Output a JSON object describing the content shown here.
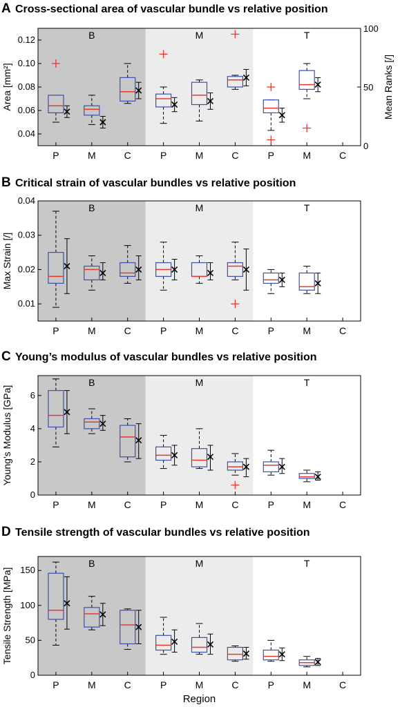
{
  "x_axis_label": "Region",
  "categories": [
    "P",
    "M",
    "C",
    "P",
    "M",
    "C",
    "P",
    "M",
    "C"
  ],
  "regions": [
    {
      "label": "B",
      "shade": "#c8c8c8"
    },
    {
      "label": "M",
      "shade": "#ececec"
    },
    {
      "label": "T",
      "shade": "#ffffff"
    }
  ],
  "colors": {
    "box": "#3a4fb0",
    "median": "#e8392e",
    "outlier": "#e8392e",
    "whisker": "#000000"
  },
  "chart_data": [
    {
      "type": "box",
      "letter": "A",
      "title": "Cross-sectional area of vascular bundle vs relative position",
      "ylabel": "Area [mm²]",
      "ylim": [
        0.03,
        0.13
      ],
      "yticks": [
        "0.04",
        "0.06",
        "0.08",
        "0.10",
        "0.12"
      ],
      "right_axis": {
        "label": "Mean Ranks [/]",
        "lim": [
          0,
          100
        ],
        "ticks": [
          "0",
          "50",
          "100"
        ]
      },
      "boxes": [
        {
          "category": "P",
          "region": "B",
          "min": 0.05,
          "q1": 0.058,
          "median": 0.064,
          "q3": 0.073,
          "max": 0.073,
          "outliers": [
            0.1
          ]
        },
        {
          "category": "M",
          "region": "B",
          "min": 0.048,
          "q1": 0.056,
          "median": 0.061,
          "q3": 0.064,
          "max": 0.073,
          "outliers": []
        },
        {
          "category": "C",
          "region": "B",
          "min": 0.066,
          "q1": 0.068,
          "median": 0.076,
          "q3": 0.088,
          "max": 0.1,
          "outliers": []
        },
        {
          "category": "P",
          "region": "M",
          "min": 0.049,
          "q1": 0.063,
          "median": 0.07,
          "q3": 0.074,
          "max": 0.08,
          "outliers": [
            0.108
          ]
        },
        {
          "category": "M",
          "region": "M",
          "min": 0.051,
          "q1": 0.065,
          "median": 0.073,
          "q3": 0.084,
          "max": 0.086,
          "outliers": []
        },
        {
          "category": "C",
          "region": "M",
          "min": 0.078,
          "q1": 0.08,
          "median": 0.086,
          "q3": 0.089,
          "max": 0.09,
          "outliers": [
            0.125
          ]
        },
        {
          "category": "P",
          "region": "T",
          "min": 0.043,
          "q1": 0.058,
          "median": 0.062,
          "q3": 0.069,
          "max": 0.069,
          "outliers": [
            0.08,
            0.035
          ]
        },
        {
          "category": "M",
          "region": "T",
          "min": 0.07,
          "q1": 0.078,
          "median": 0.082,
          "q3": 0.094,
          "max": 0.1,
          "outliers": [
            0.045
          ]
        }
      ],
      "mean_ranks": [
        {
          "mean": 29,
          "low": 24,
          "high": 34
        },
        {
          "mean": 20,
          "low": 15,
          "high": 25
        },
        {
          "mean": 47,
          "low": 40,
          "high": 54
        },
        {
          "mean": 35,
          "low": 29,
          "high": 41
        },
        {
          "mean": 38,
          "low": 31,
          "high": 45
        },
        {
          "mean": 58,
          "low": 51,
          "high": 65
        },
        {
          "mean": 26,
          "low": 20,
          "high": 32
        },
        {
          "mean": 52,
          "low": 46,
          "high": 58
        }
      ]
    },
    {
      "type": "box",
      "letter": "B",
      "title": "Critical strain of vascular bundles vs relative position",
      "ylabel": "Max Strain [/]",
      "ylim": [
        0.005,
        0.04
      ],
      "yticks": [
        "0.01",
        "0.02",
        "0.03",
        "0.04"
      ],
      "boxes": [
        {
          "category": "P",
          "region": "B",
          "min": 0.009,
          "q1": 0.016,
          "median": 0.018,
          "q3": 0.025,
          "max": 0.037,
          "outliers": []
        },
        {
          "category": "M",
          "region": "B",
          "min": 0.014,
          "q1": 0.017,
          "median": 0.02,
          "q3": 0.021,
          "max": 0.024,
          "outliers": []
        },
        {
          "category": "C",
          "region": "B",
          "min": 0.016,
          "q1": 0.018,
          "median": 0.019,
          "q3": 0.022,
          "max": 0.027,
          "outliers": []
        },
        {
          "category": "P",
          "region": "M",
          "min": 0.014,
          "q1": 0.018,
          "median": 0.02,
          "q3": 0.022,
          "max": 0.028,
          "outliers": []
        },
        {
          "category": "M",
          "region": "M",
          "min": 0.016,
          "q1": 0.018,
          "median": 0.018,
          "q3": 0.022,
          "max": 0.024,
          "outliers": []
        },
        {
          "category": "C",
          "region": "M",
          "min": 0.017,
          "q1": 0.018,
          "median": 0.021,
          "q3": 0.022,
          "max": 0.028,
          "outliers": [
            0.01
          ]
        },
        {
          "category": "P",
          "region": "T",
          "min": 0.013,
          "q1": 0.016,
          "median": 0.017,
          "q3": 0.019,
          "max": 0.02,
          "outliers": []
        },
        {
          "category": "M",
          "region": "T",
          "min": 0.013,
          "q1": 0.014,
          "median": 0.015,
          "q3": 0.019,
          "max": 0.021,
          "outliers": []
        }
      ],
      "means": [
        {
          "mean": 0.021,
          "low": 0.013,
          "high": 0.029
        },
        {
          "mean": 0.019,
          "low": 0.017,
          "high": 0.022
        },
        {
          "mean": 0.02,
          "low": 0.017,
          "high": 0.024
        },
        {
          "mean": 0.02,
          "low": 0.017,
          "high": 0.023
        },
        {
          "mean": 0.019,
          "low": 0.017,
          "high": 0.022
        },
        {
          "mean": 0.02,
          "low": 0.014,
          "high": 0.026
        },
        {
          "mean": 0.017,
          "low": 0.015,
          "high": 0.019
        },
        {
          "mean": 0.016,
          "low": 0.013,
          "high": 0.019
        }
      ]
    },
    {
      "type": "box",
      "letter": "C",
      "title": "Young’s modulus of vascular bundles vs relative position",
      "ylabel": "Young’s Modulus [GPa]",
      "ylim": [
        0,
        7.2
      ],
      "yticks": [
        "0",
        "2",
        "4",
        "6"
      ],
      "boxes": [
        {
          "category": "P",
          "region": "B",
          "min": 2.9,
          "q1": 4.1,
          "median": 4.8,
          "q3": 6.3,
          "max": 7.0,
          "outliers": []
        },
        {
          "category": "M",
          "region": "B",
          "min": 3.7,
          "q1": 4.0,
          "median": 4.4,
          "q3": 4.6,
          "max": 5.2,
          "outliers": []
        },
        {
          "category": "C",
          "region": "B",
          "min": 2.0,
          "q1": 2.3,
          "median": 3.5,
          "q3": 4.2,
          "max": 4.6,
          "outliers": []
        },
        {
          "category": "P",
          "region": "M",
          "min": 1.6,
          "q1": 2.1,
          "median": 2.4,
          "q3": 2.9,
          "max": 3.6,
          "outliers": []
        },
        {
          "category": "M",
          "region": "M",
          "min": 1.6,
          "q1": 1.7,
          "median": 2.1,
          "q3": 2.8,
          "max": 4.0,
          "outliers": []
        },
        {
          "category": "C",
          "region": "M",
          "min": 1.2,
          "q1": 1.5,
          "median": 1.7,
          "q3": 2.0,
          "max": 2.5,
          "outliers": [
            0.6
          ]
        },
        {
          "category": "P",
          "region": "T",
          "min": 1.2,
          "q1": 1.4,
          "median": 1.8,
          "q3": 2.0,
          "max": 2.7,
          "outliers": []
        },
        {
          "category": "M",
          "region": "T",
          "min": 0.8,
          "q1": 1.0,
          "median": 1.1,
          "q3": 1.3,
          "max": 1.5,
          "outliers": []
        }
      ],
      "means": [
        {
          "mean": 5.0,
          "low": 3.7,
          "high": 6.3
        },
        {
          "mean": 4.3,
          "low": 3.9,
          "high": 4.8
        },
        {
          "mean": 3.3,
          "low": 2.2,
          "high": 4.3
        },
        {
          "mean": 2.4,
          "low": 1.8,
          "high": 3.0
        },
        {
          "mean": 2.3,
          "low": 1.5,
          "high": 3.0
        },
        {
          "mean": 1.7,
          "low": 1.1,
          "high": 2.2
        },
        {
          "mean": 1.7,
          "low": 1.3,
          "high": 2.2
        },
        {
          "mean": 1.1,
          "low": 0.9,
          "high": 1.4
        }
      ]
    },
    {
      "type": "box",
      "letter": "D",
      "title": "Tensile strength of vascular bundles vs relative position",
      "ylabel": "Tensile Strength [MPa]",
      "ylim": [
        0,
        170
      ],
      "yticks": [
        "0",
        "50",
        "100",
        "150"
      ],
      "boxes": [
        {
          "category": "P",
          "region": "B",
          "min": 43,
          "q1": 80,
          "median": 93,
          "q3": 146,
          "max": 162,
          "outliers": []
        },
        {
          "category": "M",
          "region": "B",
          "min": 65,
          "q1": 69,
          "median": 88,
          "q3": 97,
          "max": 113,
          "outliers": []
        },
        {
          "category": "C",
          "region": "B",
          "min": 37,
          "q1": 45,
          "median": 72,
          "q3": 93,
          "max": 95,
          "outliers": []
        },
        {
          "category": "P",
          "region": "M",
          "min": 30,
          "q1": 36,
          "median": 43,
          "q3": 57,
          "max": 83,
          "outliers": []
        },
        {
          "category": "M",
          "region": "M",
          "min": 30,
          "q1": 33,
          "median": 40,
          "q3": 54,
          "max": 74,
          "outliers": []
        },
        {
          "category": "C",
          "region": "M",
          "min": 20,
          "q1": 22,
          "median": 30,
          "q3": 40,
          "max": 42,
          "outliers": []
        },
        {
          "category": "P",
          "region": "T",
          "min": 20,
          "q1": 22,
          "median": 27,
          "q3": 36,
          "max": 50,
          "outliers": []
        },
        {
          "category": "M",
          "region": "T",
          "min": 12,
          "q1": 14,
          "median": 18,
          "q3": 22,
          "max": 27,
          "outliers": []
        }
      ],
      "means": [
        {
          "mean": 103,
          "low": 66,
          "high": 141
        },
        {
          "mean": 87,
          "low": 71,
          "high": 103
        },
        {
          "mean": 69,
          "low": 45,
          "high": 93
        },
        {
          "mean": 48,
          "low": 33,
          "high": 65
        },
        {
          "mean": 44,
          "low": 30,
          "high": 59
        },
        {
          "mean": 31,
          "low": 23,
          "high": 40
        },
        {
          "mean": 30,
          "low": 21,
          "high": 39
        },
        {
          "mean": 19,
          "low": 14,
          "high": 24
        }
      ]
    }
  ]
}
